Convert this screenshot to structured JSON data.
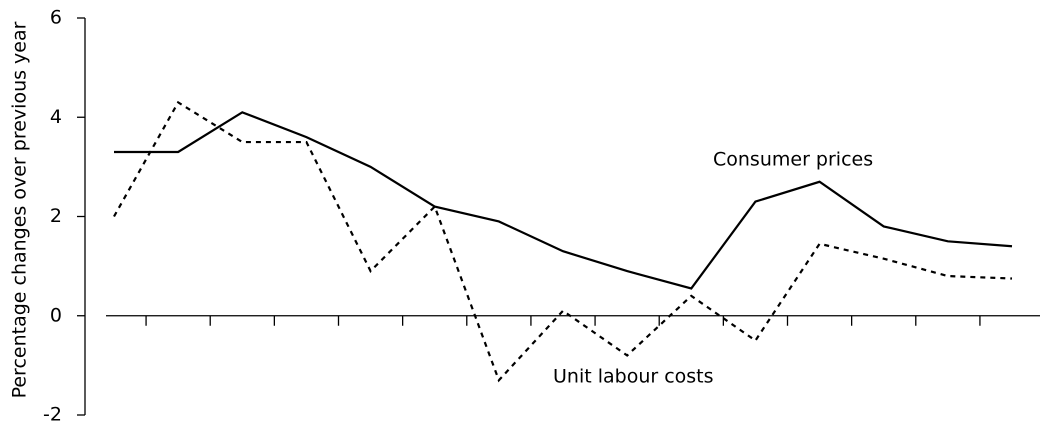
{
  "chart_data": {
    "type": "line",
    "y_label": "Percentage changes over previous year",
    "categories": [
      null,
      null,
      null,
      null,
      null,
      null,
      null,
      null,
      null,
      null,
      null,
      null,
      null,
      null,
      null
    ],
    "series": [
      {
        "name": "Consumer prices",
        "color": "#000000",
        "style": "solid",
        "values": [
          3.3,
          3.3,
          4.1,
          3.6,
          3.0,
          2.2,
          1.9,
          1.3,
          0.9,
          0.55,
          2.3,
          2.7,
          1.8,
          1.5,
          1.4
        ]
      },
      {
        "name": "Unit labour costs",
        "color": "#000000",
        "style": "dashed",
        "values": [
          2.0,
          4.3,
          3.5,
          3.5,
          0.9,
          2.2,
          -1.3,
          0.1,
          -0.8,
          0.4,
          -0.5,
          1.45,
          1.15,
          0.8,
          0.75
        ]
      }
    ],
    "ylim": [
      -2,
      6
    ],
    "yticks": [
      -2,
      0,
      2,
      4,
      6
    ],
    "grid": false
  }
}
